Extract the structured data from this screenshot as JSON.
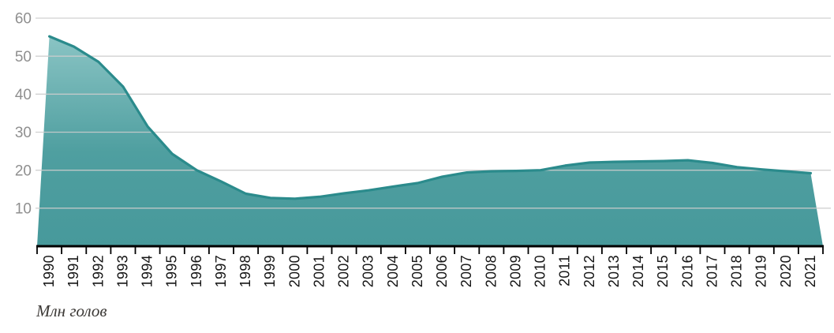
{
  "chart_data": {
    "type": "area",
    "title": "",
    "unit_label": "Млн голов",
    "categories": [
      "1990",
      "1991",
      "1992",
      "1993",
      "1994",
      "1995",
      "1996",
      "1997",
      "1998",
      "1999",
      "2000",
      "2001",
      "2002",
      "2003",
      "2004",
      "2005",
      "2006",
      "2007",
      "2008",
      "2009",
      "2010",
      "2011",
      "2012",
      "2013",
      "2014",
      "2015",
      "2016",
      "2017",
      "2018",
      "2019",
      "2020",
      "2021"
    ],
    "values": [
      55.2,
      52.5,
      48.5,
      42.0,
      31.5,
      24.3,
      20.0,
      17.0,
      13.8,
      12.7,
      12.5,
      13.0,
      13.9,
      14.7,
      15.7,
      16.6,
      18.3,
      19.4,
      19.7,
      19.8,
      20.0,
      21.2,
      22.0,
      22.2,
      22.3,
      22.4,
      22.6,
      21.9,
      20.8,
      20.2,
      19.7,
      19.2
    ],
    "ylim": [
      0,
      60
    ],
    "yticks": [
      10,
      20,
      30,
      40,
      50,
      60
    ],
    "grid": true,
    "legend": "none",
    "colors": {
      "area_top": "#8ac4c4",
      "area_mid": "#4f9fa0",
      "area_bottom": "#47999b",
      "line": "#2b8b8c",
      "grid": "#cccccc",
      "axis": "#000000",
      "ytick_text": "#8f8f8f",
      "xtick_text": "#141414",
      "unit_text": "#3c3936"
    }
  }
}
